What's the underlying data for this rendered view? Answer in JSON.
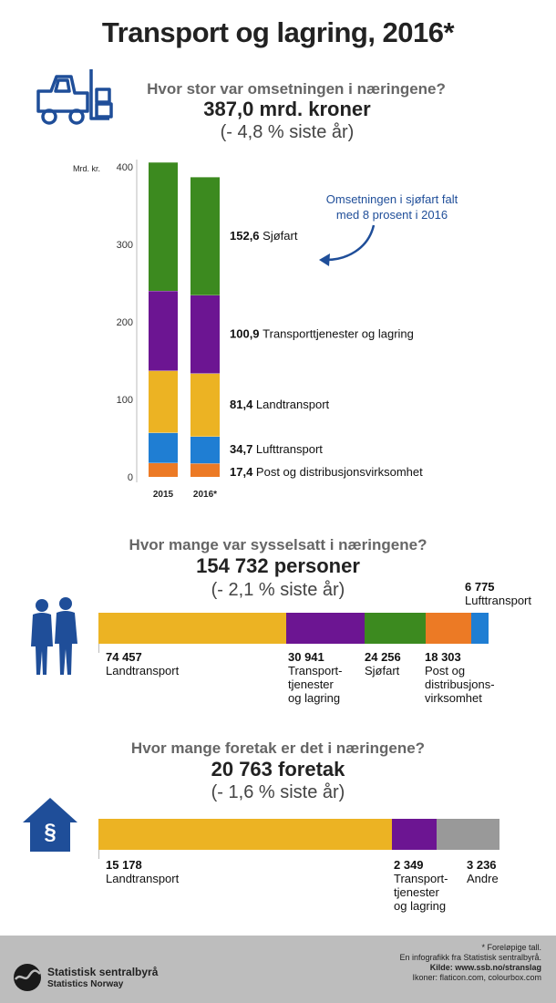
{
  "title": "Transport og lagring, 2016*",
  "sections": {
    "revenue": {
      "question": "Hvor stor var omsetningen i næringene?",
      "headline": "387,0 mrd. kroner",
      "change": "(- 4,8 % siste år)",
      "annotation_line1": "Omsetningen i sjøfart falt",
      "annotation_line2": "med 8 prosent i 2016"
    },
    "employment": {
      "question": "Hvor mange var sysselsatt i næringene?",
      "headline": "154 732 personer",
      "change": "(- 2,1 % siste år)"
    },
    "enterprises": {
      "question": "Hvor mange foretak er det i næringene?",
      "headline": "20 763 foretak",
      "change": "(- 1,6 % siste år)"
    }
  },
  "colors": {
    "land": "#ecb323",
    "air": "#1f7ed3",
    "post": "#ec7a25",
    "sea": "#3c8a1f",
    "services": "#6c1592",
    "other": "#999999",
    "icon": "#1f4e99"
  },
  "chart_data": [
    {
      "type": "bar",
      "stacked": true,
      "ylabel": "Mrd. kr.",
      "ylim": [
        0,
        400
      ],
      "yticks": [
        0,
        100,
        200,
        300,
        400
      ],
      "categories": [
        "2015",
        "2016*"
      ],
      "series": [
        {
          "name": "Post og distribusjonsvirksomhet",
          "values": [
            18.0,
            17.4
          ],
          "label": "17,4",
          "label_text": "Post og distribusjonsvirksomhet"
        },
        {
          "name": "Lufttransport",
          "values": [
            39.0,
            34.7
          ],
          "label": "34,7",
          "label_text": "Lufttransport"
        },
        {
          "name": "Landtransport",
          "values": [
            80.0,
            81.4
          ],
          "label": "81,4",
          "label_text": "Landtransport"
        },
        {
          "name": "Transporttjenester og lagring",
          "values": [
            103.0,
            100.9
          ],
          "label": "100,9",
          "label_text": "Transporttjenester og lagring"
        },
        {
          "name": "Sjøfart",
          "values": [
            166.0,
            152.6
          ],
          "label": "152,6",
          "label_text": "Sjøfart"
        }
      ]
    },
    {
      "type": "bar",
      "orientation": "horizontal",
      "stacked": true,
      "segments": [
        {
          "value": 74457,
          "label": "74 457",
          "text_lines": [
            "Landtransport"
          ]
        },
        {
          "value": 30941,
          "label": "30 941",
          "text_lines": [
            "Transport-",
            "tjenester",
            "og lagring"
          ]
        },
        {
          "value": 24256,
          "label": "24 256",
          "text_lines": [
            "Sjøfart"
          ]
        },
        {
          "value": 18303,
          "label": "18 303",
          "text_lines": [
            "Post og",
            "distribusjons-",
            "virksomhet"
          ]
        },
        {
          "value": 6775,
          "label": "6 775",
          "text_lines": [
            "Lufttransport"
          ]
        }
      ]
    },
    {
      "type": "bar",
      "orientation": "horizontal",
      "stacked": true,
      "segments": [
        {
          "value": 15178,
          "label": "15 178",
          "text_lines": [
            "Landtransport"
          ]
        },
        {
          "value": 2349,
          "label": "2 349",
          "text_lines": [
            "Transport-",
            "tjenester",
            "og lagring"
          ]
        },
        {
          "value": 3236,
          "label": "3 236",
          "text_lines": [
            "Andre"
          ]
        }
      ]
    }
  ],
  "footer": {
    "org_name_1": "Statistisk sentralbyrå",
    "org_name_2": "Statistics Norway",
    "note_1": "* Foreløpige tall.",
    "note_2": "En infografikk fra Statistisk sentralbyrå.",
    "note_3": "Kilde: www.ssb.no/stranslag",
    "note_4": "Ikoner: flaticon.com, colourbox.com"
  }
}
